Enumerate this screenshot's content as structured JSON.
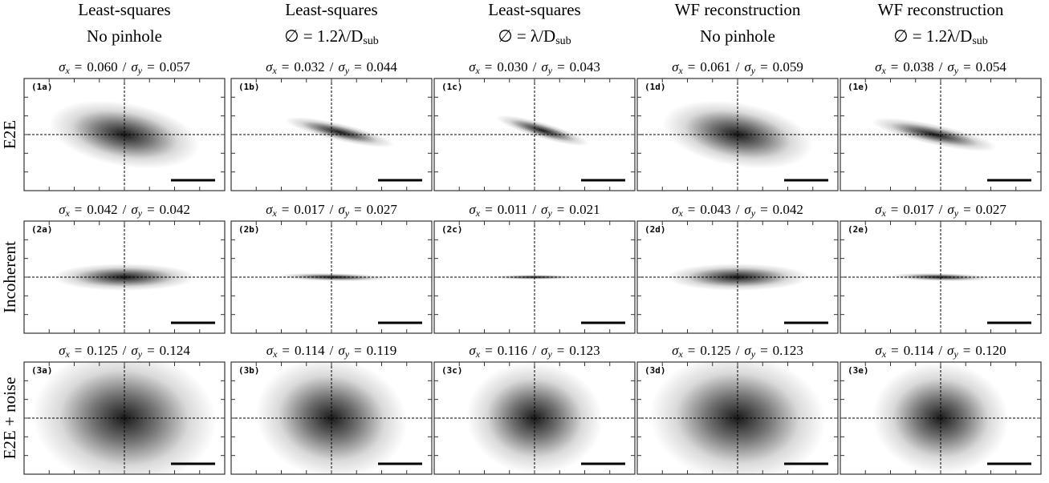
{
  "caption_parts": {
    "sigma": "σ",
    "x": "x",
    "y": "y",
    "eq": "=",
    "sep": "/"
  },
  "columns": [
    {
      "title": "Least-squares",
      "subtitle": {
        "main": "No pinhole",
        "sub": ""
      }
    },
    {
      "title": "Least-squares",
      "subtitle": {
        "main": "∅ = 1.2λ/D",
        "sub": "sub"
      }
    },
    {
      "title": "Least-squares",
      "subtitle": {
        "main": "∅ = λ/D",
        "sub": "sub"
      }
    },
    {
      "title": "WF reconstruction",
      "subtitle": {
        "main": "No pinhole",
        "sub": ""
      }
    },
    {
      "title": "WF reconstruction",
      "subtitle": {
        "main": "∅ = 1.2λ/D",
        "sub": "sub"
      }
    }
  ],
  "rows": [
    {
      "label": "E2E",
      "panels": [
        {
          "label": "(1a)",
          "sx": "0.060",
          "sy": "0.057"
        },
        {
          "label": "(1b)",
          "sx": "0.032",
          "sy": "0.044"
        },
        {
          "label": "(1c)",
          "sx": "0.030",
          "sy": "0.043"
        },
        {
          "label": "(1d)",
          "sx": "0.061",
          "sy": "0.059"
        },
        {
          "label": "(1e)",
          "sx": "0.038",
          "sy": "0.054"
        }
      ]
    },
    {
      "label": "Incoherent",
      "panels": [
        {
          "label": "(2a)",
          "sx": "0.042",
          "sy": "0.042"
        },
        {
          "label": "(2b)",
          "sx": "0.017",
          "sy": "0.027"
        },
        {
          "label": "(2c)",
          "sx": "0.011",
          "sy": "0.021"
        },
        {
          "label": "(2d)",
          "sx": "0.043",
          "sy": "0.042"
        },
        {
          "label": "(2e)",
          "sx": "0.017",
          "sy": "0.027"
        }
      ]
    },
    {
      "label": "E2E + noise",
      "panels": [
        {
          "label": "(3a)",
          "sx": "0.125",
          "sy": "0.124"
        },
        {
          "label": "(3b)",
          "sx": "0.114",
          "sy": "0.119"
        },
        {
          "label": "(3c)",
          "sx": "0.116",
          "sy": "0.123"
        },
        {
          "label": "(3d)",
          "sx": "0.125",
          "sy": "0.123"
        },
        {
          "label": "(3e)",
          "sx": "0.114",
          "sy": "0.120"
        }
      ]
    }
  ]
}
